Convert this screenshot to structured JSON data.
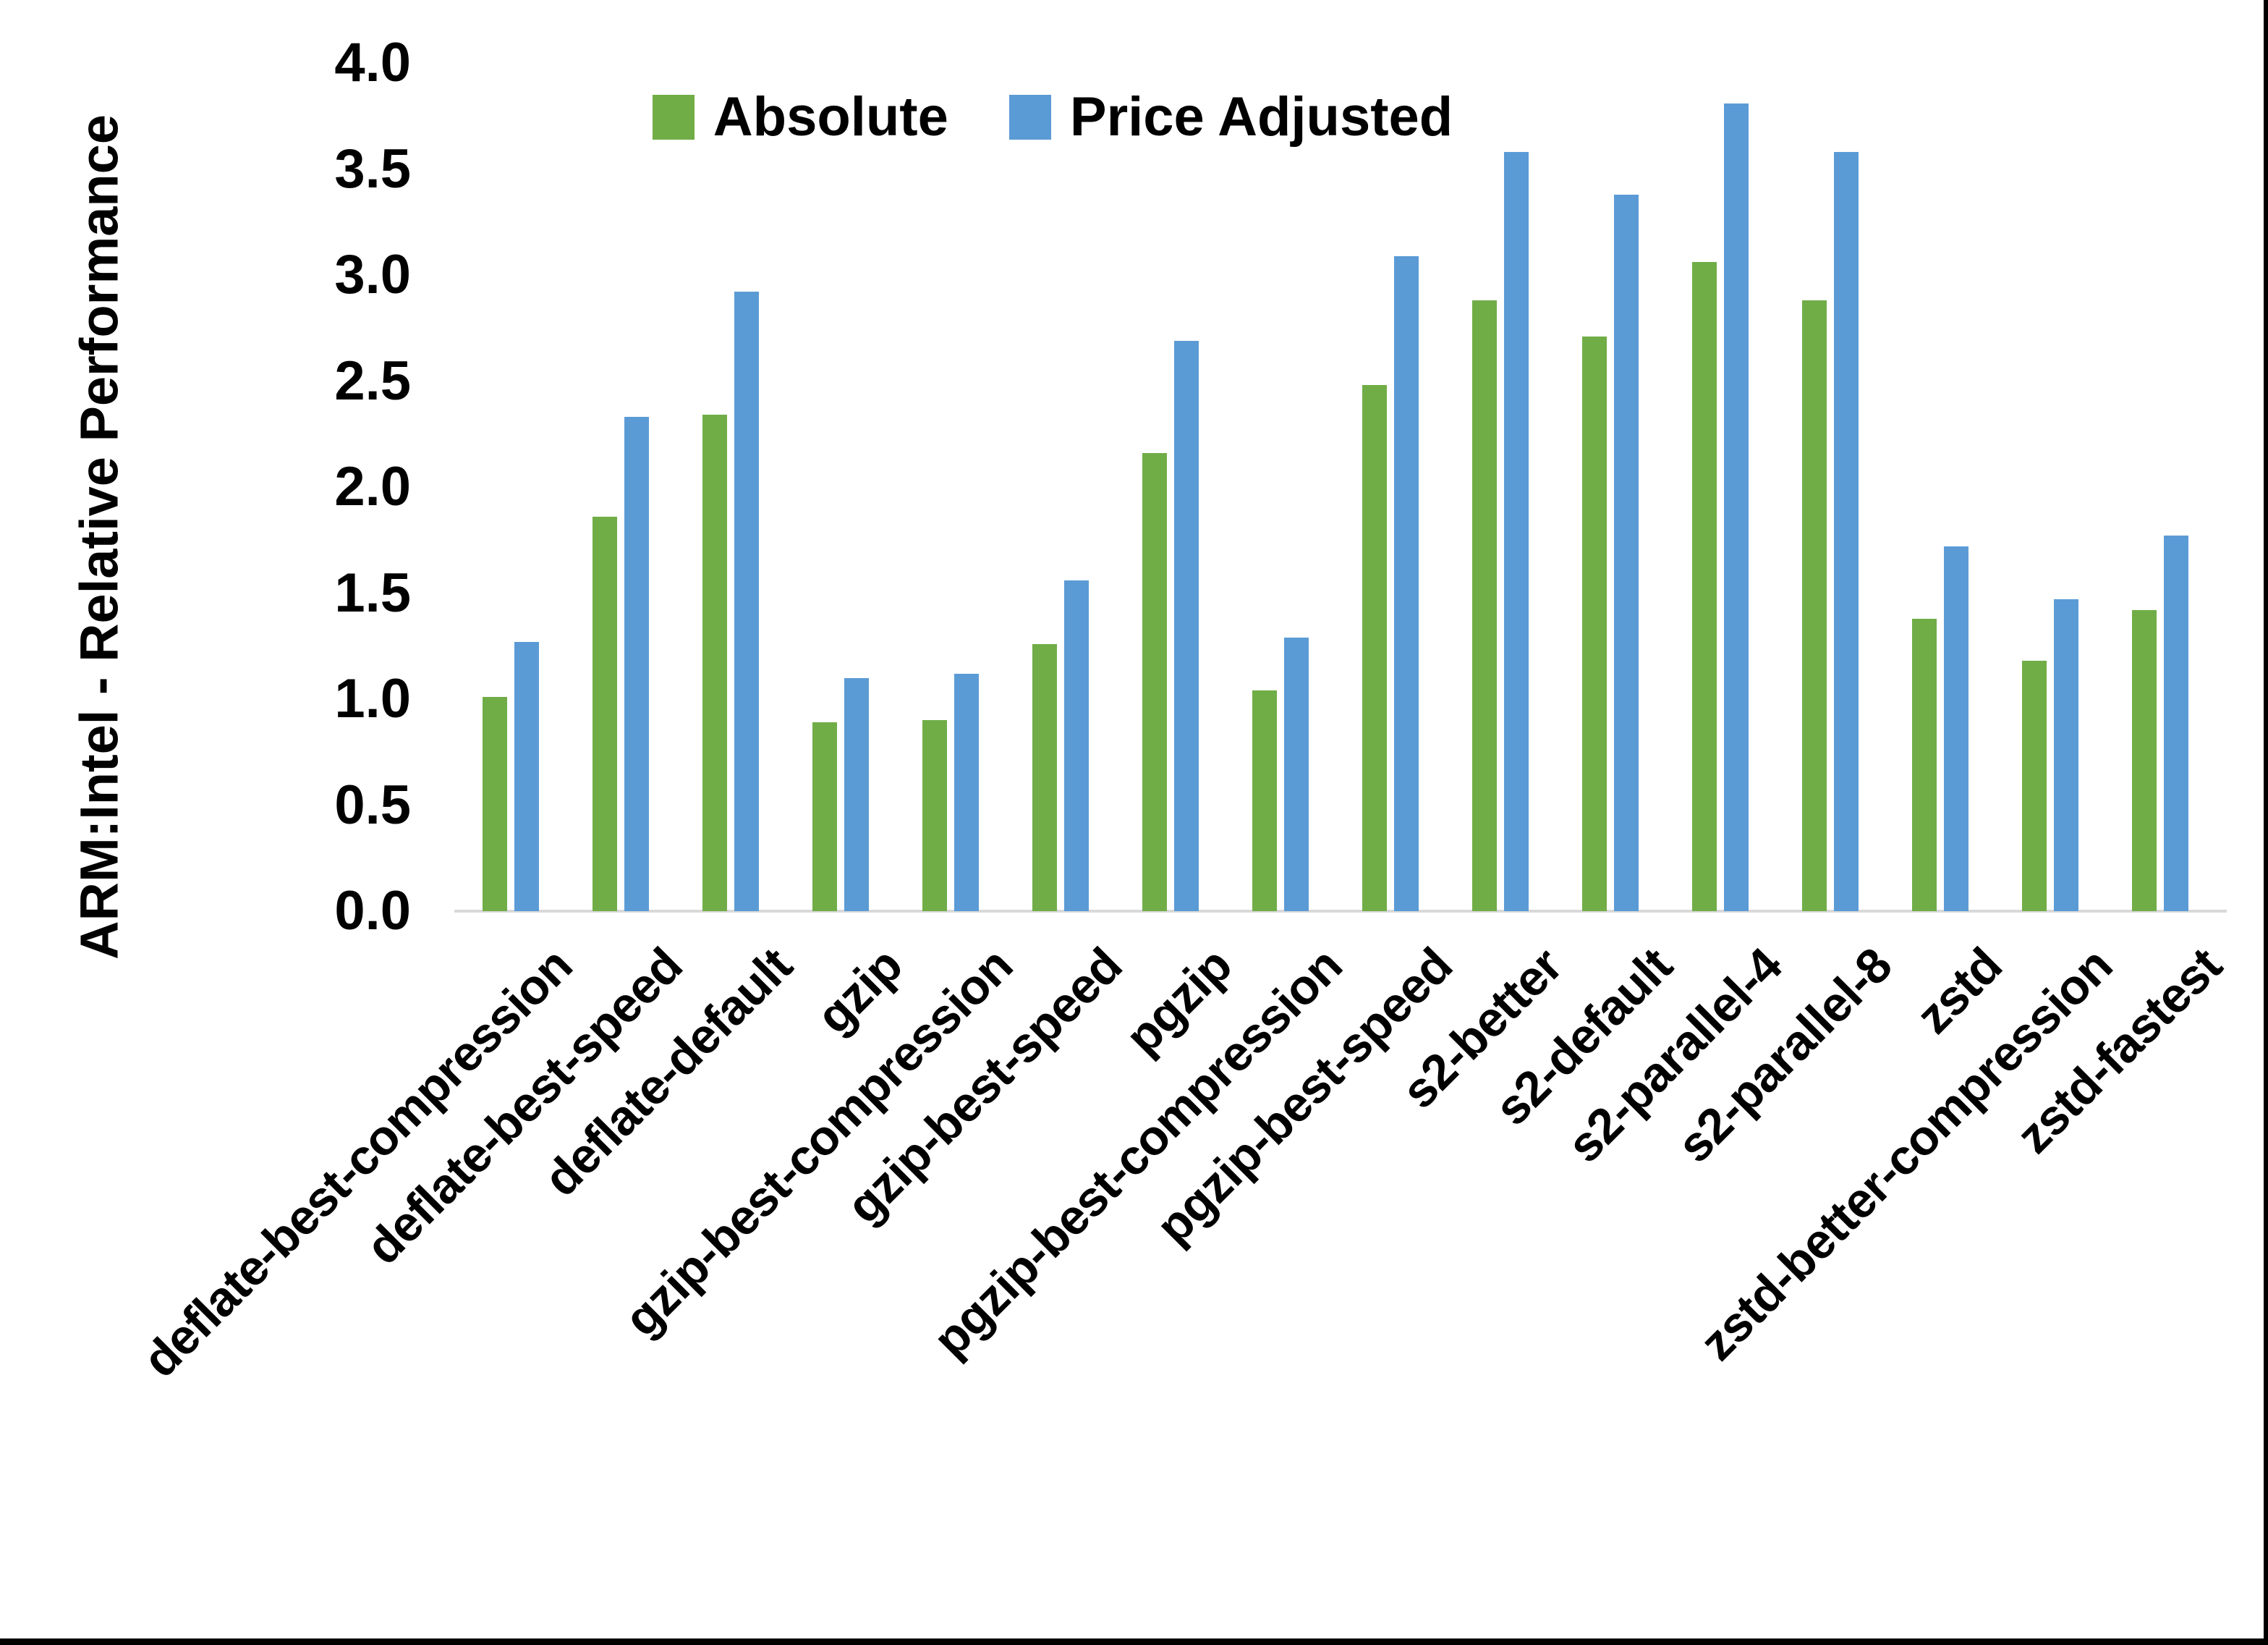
{
  "figure": {
    "background": "#FFFFFF",
    "frame_color": "#000000",
    "axis_line_color": "#D9D9D9"
  },
  "chart_data": {
    "type": "bar",
    "title": "",
    "ylabel": "ARM:Intel - Relative Performance",
    "xlabel": "",
    "ylim": [
      0.0,
      4.0
    ],
    "ytick_step": 0.5,
    "ytick_labels": [
      "0.0",
      "0.5",
      "1.0",
      "1.5",
      "2.0",
      "2.5",
      "3.0",
      "3.5",
      "4.0"
    ],
    "grid": false,
    "legend_position": "top",
    "categories": [
      "deflate-best-compression",
      "deflate-best-speed",
      "deflate-default",
      "gzip",
      "gzip-best-compression",
      "gzip-best-speed",
      "pgzip",
      "pgzip-best-compression",
      "pgzip-best-speed",
      "s2-better",
      "s2-default",
      "s2-parallel-4",
      "s2-parallel-8",
      "zstd",
      "zstd-better-compression",
      "zstd-fastest"
    ],
    "series": [
      {
        "name": "Absolute",
        "color": "#70AD47",
        "values": [
          1.01,
          1.86,
          2.34,
          0.89,
          0.9,
          1.26,
          2.16,
          1.04,
          2.48,
          2.88,
          2.71,
          3.06,
          2.88,
          1.38,
          1.18,
          1.42
        ]
      },
      {
        "name": "Price Adjusted",
        "color": "#5B9BD5",
        "values": [
          1.27,
          2.33,
          2.92,
          1.1,
          1.12,
          1.56,
          2.69,
          1.29,
          3.09,
          3.58,
          3.38,
          3.81,
          3.58,
          1.72,
          1.47,
          1.77
        ]
      }
    ]
  }
}
